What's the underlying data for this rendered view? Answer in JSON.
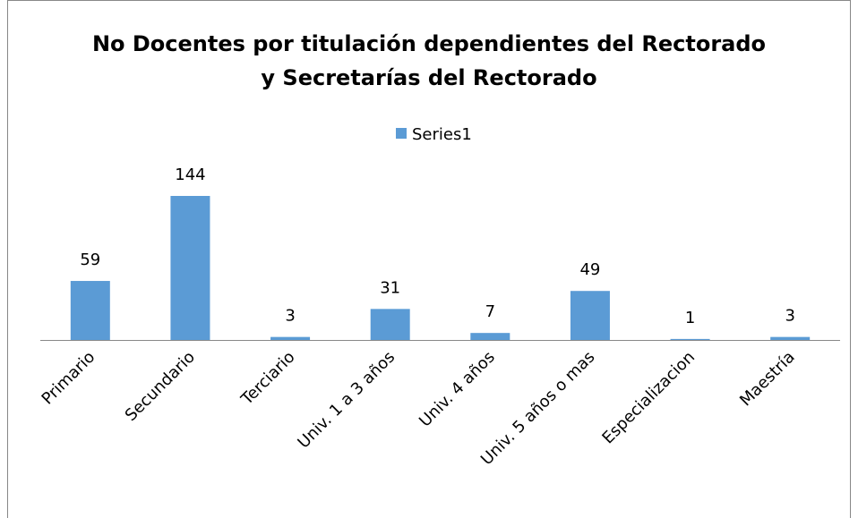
{
  "chart_data": {
    "type": "bar",
    "title": "No Docentes por titulación dependientes del Rectorado\ny Secretarías del Rectorado",
    "categories": [
      "Primario",
      "Secundario",
      "Terciario",
      "Univ. 1 a 3 años",
      "Univ. 4 años",
      "Univ. 5 años o mas",
      "Especializacion",
      "Maestría"
    ],
    "series": [
      {
        "name": "Series1",
        "color": "#5b9bd5",
        "values": [
          59,
          144,
          3,
          31,
          7,
          49,
          1,
          3
        ]
      }
    ],
    "legend": "top"
  }
}
